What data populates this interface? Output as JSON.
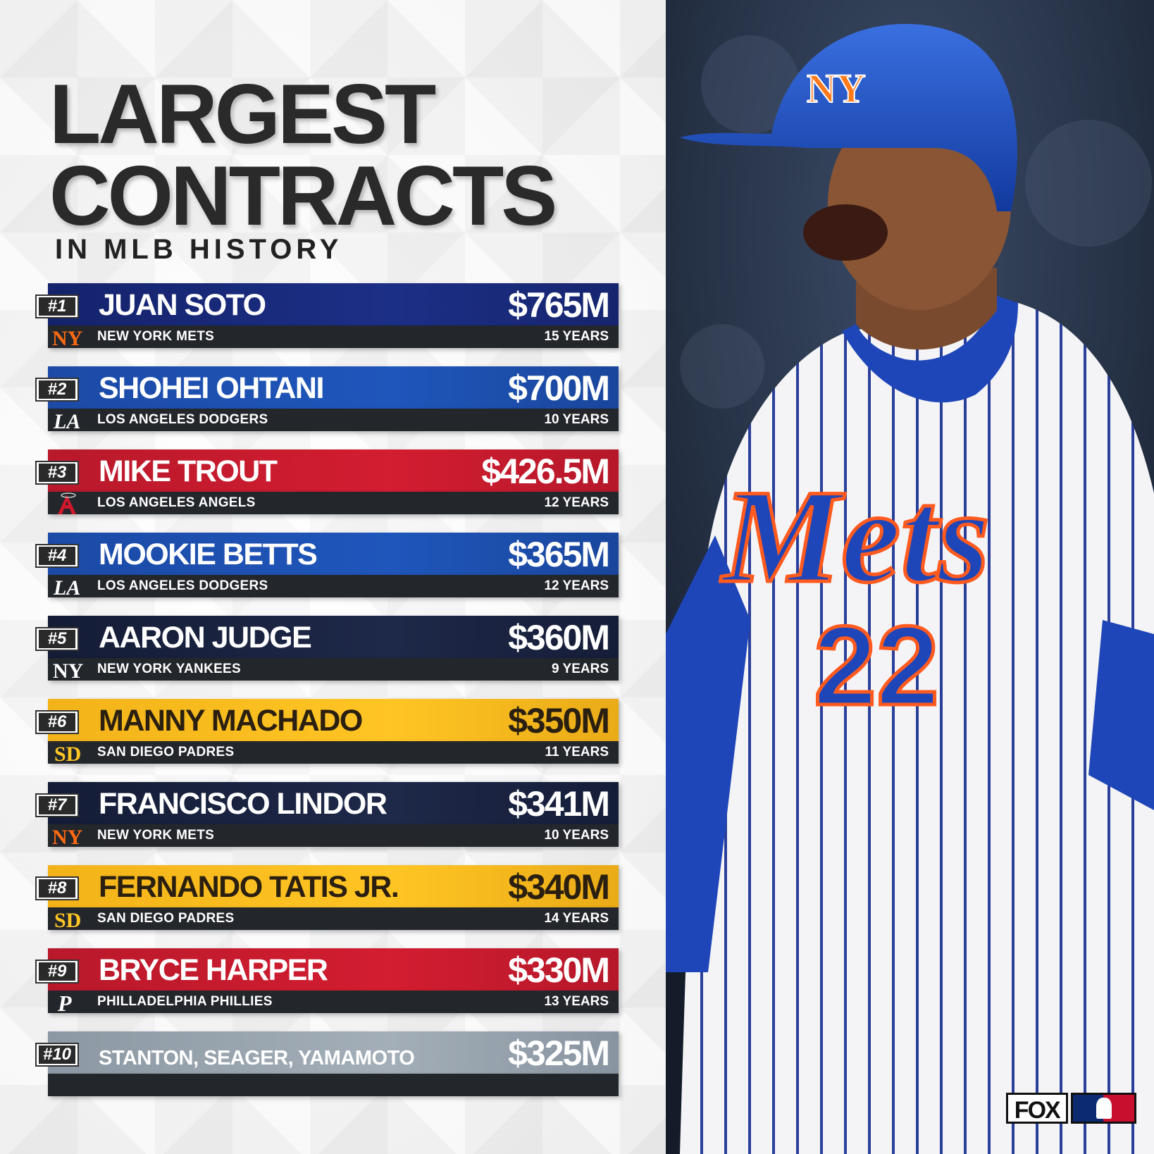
{
  "title_line1": "LARGEST",
  "title_line2": "CONTRACTS",
  "subtitle": "IN MLB HISTORY",
  "rows": [
    {
      "rank": "#1",
      "name": "JUAN SOTO",
      "amount": "$765M",
      "team": "NEW YORK METS",
      "years": "15 YEARS",
      "team_logo": "mets-logo-icon"
    },
    {
      "rank": "#2",
      "name": "SHOHEI OHTANI",
      "amount": "$700M",
      "team": "LOS ANGELES DODGERS",
      "years": "10 YEARS",
      "team_logo": "dodgers-logo-icon"
    },
    {
      "rank": "#3",
      "name": "MIKE TROUT",
      "amount": "$426.5M",
      "team": "LOS ANGELES ANGELS",
      "years": "12 YEARS",
      "team_logo": "angels-logo-icon"
    },
    {
      "rank": "#4",
      "name": "MOOKIE BETTS",
      "amount": "$365M",
      "team": "LOS ANGELES DODGERS",
      "years": "12 YEARS",
      "team_logo": "dodgers-logo-icon"
    },
    {
      "rank": "#5",
      "name": "AARON JUDGE",
      "amount": "$360M",
      "team": "NEW YORK YANKEES",
      "years": "9 YEARS",
      "team_logo": "yankees-logo-icon"
    },
    {
      "rank": "#6",
      "name": "MANNY MACHADO",
      "amount": "$350M",
      "team": "SAN DIEGO PADRES",
      "years": "11 YEARS",
      "team_logo": "padres-logo-icon"
    },
    {
      "rank": "#7",
      "name": "FRANCISCO LINDOR",
      "amount": "$341M",
      "team": "NEW YORK METS",
      "years": "10 YEARS",
      "team_logo": "mets-logo-icon"
    },
    {
      "rank": "#8",
      "name": "FERNANDO TATIS JR.",
      "amount": "$340M",
      "team": "SAN DIEGO PADRES",
      "years": "14 YEARS",
      "team_logo": "padres-logo-icon"
    },
    {
      "rank": "#9",
      "name": "BRYCE HARPER",
      "amount": "$330M",
      "team": "PHILLADELPHIA PHILLIES",
      "years": "13 YEARS",
      "team_logo": "phillies-logo-icon"
    },
    {
      "rank": "#10",
      "name": "STANTON, SEAGER, YAMAMOTO",
      "amount": "$325M",
      "team": "",
      "years": "",
      "team_logo": ""
    }
  ],
  "colors": {
    "navy": "#1c2f86",
    "blue": "#1f56bb",
    "red": "#d31d30",
    "darknavy": "#1e2848",
    "gold": "#ffc524",
    "gray": "#a3aeb8",
    "team_bar": "#23262b"
  },
  "photo": {
    "jersey_wordmark": "Mets",
    "jersey_number": "22",
    "helmet_logo": "NY"
  },
  "brand": {
    "fox": "FOX",
    "league_mark": "mlb-logo-icon"
  }
}
